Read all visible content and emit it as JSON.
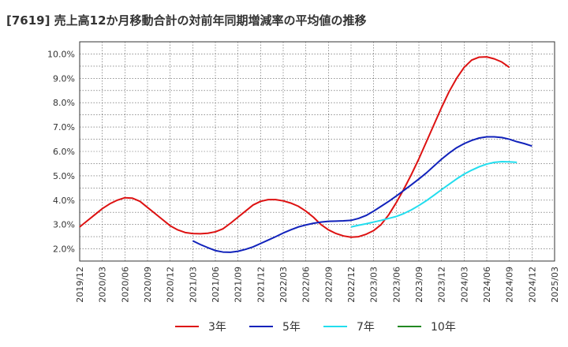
{
  "chart_data": {
    "type": "line",
    "title": "[7619]  売上高12か月移動合計の対前年同期増減率の平均値の推移",
    "xlabel": "",
    "ylabel": "",
    "x_ticks": [
      "2019/12",
      "2020/03",
      "2020/06",
      "2020/09",
      "2020/12",
      "2021/03",
      "2021/06",
      "2021/09",
      "2021/12",
      "2022/03",
      "2022/06",
      "2022/09",
      "2022/12",
      "2023/03",
      "2023/06",
      "2023/09",
      "2023/12",
      "2024/03",
      "2024/06",
      "2024/09",
      "2024/12",
      "2025/03"
    ],
    "y_ticks": [
      "2.0%",
      "3.0%",
      "4.0%",
      "5.0%",
      "6.0%",
      "7.0%",
      "8.0%",
      "9.0%",
      "10.0%"
    ],
    "ylim": [
      1.5,
      10.5
    ],
    "grid": true,
    "legend_position": "bottom",
    "series": [
      {
        "name": "3年",
        "color": "#dd1111",
        "points": [
          [
            "2019/12",
            2.9
          ],
          [
            "2020/01",
            3.15
          ],
          [
            "2020/02",
            3.4
          ],
          [
            "2020/03",
            3.65
          ],
          [
            "2020/04",
            3.85
          ],
          [
            "2020/05",
            4.0
          ],
          [
            "2020/06",
            4.1
          ],
          [
            "2020/07",
            4.08
          ],
          [
            "2020/08",
            3.95
          ],
          [
            "2020/09",
            3.7
          ],
          [
            "2020/10",
            3.45
          ],
          [
            "2020/11",
            3.2
          ],
          [
            "2020/12",
            2.95
          ],
          [
            "2021/01",
            2.78
          ],
          [
            "2021/02",
            2.67
          ],
          [
            "2021/03",
            2.63
          ],
          [
            "2021/04",
            2.62
          ],
          [
            "2021/05",
            2.64
          ],
          [
            "2021/06",
            2.7
          ],
          [
            "2021/07",
            2.82
          ],
          [
            "2021/08",
            3.05
          ],
          [
            "2021/09",
            3.3
          ],
          [
            "2021/10",
            3.55
          ],
          [
            "2021/11",
            3.8
          ],
          [
            "2021/12",
            3.95
          ],
          [
            "2022/01",
            4.02
          ],
          [
            "2022/02",
            4.02
          ],
          [
            "2022/03",
            3.97
          ],
          [
            "2022/04",
            3.88
          ],
          [
            "2022/05",
            3.75
          ],
          [
            "2022/06",
            3.55
          ],
          [
            "2022/07",
            3.3
          ],
          [
            "2022/08",
            3.0
          ],
          [
            "2022/09",
            2.78
          ],
          [
            "2022/10",
            2.63
          ],
          [
            "2022/11",
            2.53
          ],
          [
            "2022/12",
            2.48
          ],
          [
            "2023/01",
            2.5
          ],
          [
            "2023/02",
            2.6
          ],
          [
            "2023/03",
            2.75
          ],
          [
            "2023/04",
            3.0
          ],
          [
            "2023/05",
            3.4
          ],
          [
            "2023/06",
            3.9
          ],
          [
            "2023/07",
            4.45
          ],
          [
            "2023/08",
            5.05
          ],
          [
            "2023/09",
            5.7
          ],
          [
            "2023/10",
            6.4
          ],
          [
            "2023/11",
            7.1
          ],
          [
            "2023/12",
            7.8
          ],
          [
            "2024/01",
            8.45
          ],
          [
            "2024/02",
            9.0
          ],
          [
            "2024/03",
            9.45
          ],
          [
            "2024/04",
            9.75
          ],
          [
            "2024/05",
            9.87
          ],
          [
            "2024/06",
            9.88
          ],
          [
            "2024/07",
            9.8
          ],
          [
            "2024/08",
            9.67
          ],
          [
            "2024/09",
            9.45
          ]
        ]
      },
      {
        "name": "5年",
        "color": "#1122bb",
        "points": [
          [
            "2021/03",
            2.33
          ],
          [
            "2021/04",
            2.18
          ],
          [
            "2021/05",
            2.05
          ],
          [
            "2021/06",
            1.93
          ],
          [
            "2021/07",
            1.87
          ],
          [
            "2021/08",
            1.86
          ],
          [
            "2021/09",
            1.9
          ],
          [
            "2021/10",
            1.98
          ],
          [
            "2021/11",
            2.08
          ],
          [
            "2021/12",
            2.22
          ],
          [
            "2022/01",
            2.36
          ],
          [
            "2022/02",
            2.5
          ],
          [
            "2022/03",
            2.65
          ],
          [
            "2022/04",
            2.78
          ],
          [
            "2022/05",
            2.9
          ],
          [
            "2022/06",
            2.98
          ],
          [
            "2022/07",
            3.05
          ],
          [
            "2022/08",
            3.1
          ],
          [
            "2022/09",
            3.13
          ],
          [
            "2022/10",
            3.14
          ],
          [
            "2022/11",
            3.15
          ],
          [
            "2022/12",
            3.17
          ],
          [
            "2023/01",
            3.25
          ],
          [
            "2023/02",
            3.37
          ],
          [
            "2023/03",
            3.55
          ],
          [
            "2023/04",
            3.75
          ],
          [
            "2023/05",
            3.95
          ],
          [
            "2023/06",
            4.17
          ],
          [
            "2023/07",
            4.4
          ],
          [
            "2023/08",
            4.63
          ],
          [
            "2023/09",
            4.87
          ],
          [
            "2023/10",
            5.12
          ],
          [
            "2023/11",
            5.4
          ],
          [
            "2023/12",
            5.68
          ],
          [
            "2024/01",
            5.93
          ],
          [
            "2024/02",
            6.15
          ],
          [
            "2024/03",
            6.32
          ],
          [
            "2024/04",
            6.45
          ],
          [
            "2024/05",
            6.55
          ],
          [
            "2024/06",
            6.6
          ],
          [
            "2024/07",
            6.6
          ],
          [
            "2024/08",
            6.57
          ],
          [
            "2024/09",
            6.5
          ],
          [
            "2024/10",
            6.4
          ],
          [
            "2024/11",
            6.32
          ],
          [
            "2024/12",
            6.22
          ]
        ]
      },
      {
        "name": "7年",
        "color": "#22ddee",
        "points": [
          [
            "2022/12",
            2.9
          ],
          [
            "2023/01",
            2.97
          ],
          [
            "2023/02",
            3.03
          ],
          [
            "2023/03",
            3.1
          ],
          [
            "2023/04",
            3.17
          ],
          [
            "2023/05",
            3.25
          ],
          [
            "2023/06",
            3.33
          ],
          [
            "2023/07",
            3.45
          ],
          [
            "2023/08",
            3.6
          ],
          [
            "2023/09",
            3.78
          ],
          [
            "2023/10",
            3.98
          ],
          [
            "2023/11",
            4.2
          ],
          [
            "2023/12",
            4.43
          ],
          [
            "2024/01",
            4.65
          ],
          [
            "2024/02",
            4.87
          ],
          [
            "2024/03",
            5.07
          ],
          [
            "2024/04",
            5.23
          ],
          [
            "2024/05",
            5.37
          ],
          [
            "2024/06",
            5.48
          ],
          [
            "2024/07",
            5.55
          ],
          [
            "2024/08",
            5.58
          ],
          [
            "2024/09",
            5.57
          ],
          [
            "2024/10",
            5.55
          ]
        ]
      },
      {
        "name": "10年",
        "color": "#228822",
        "points": []
      }
    ]
  }
}
